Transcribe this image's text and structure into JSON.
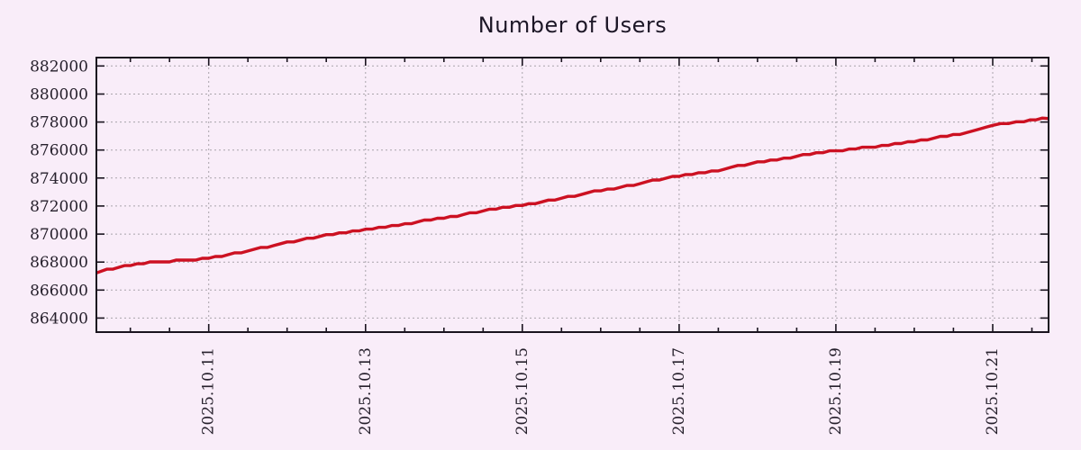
{
  "page": {
    "background": "#f9edf9"
  },
  "style": {
    "grid_color": "#a9a4ab",
    "axis_color": "#1a141f",
    "tick_label_color": "#26202c",
    "title_color": "#1c1626"
  },
  "chart_data": {
    "type": "line",
    "title": "Number of Users",
    "xlabel": "",
    "ylabel": "",
    "legend": "none",
    "grid": "dashed major gridlines, horizontal and vertical",
    "x_unit": "day of October 2025",
    "xlim": [
      9.567,
      21.713
    ],
    "ylim": [
      863000,
      882600
    ],
    "y_ticks": [
      864000,
      866000,
      868000,
      870000,
      872000,
      874000,
      876000,
      878000,
      880000,
      882000
    ],
    "x_major_ticks": [
      {
        "day": 11,
        "label": "2025.10.11"
      },
      {
        "day": 13,
        "label": "2025.10.13"
      },
      {
        "day": 15,
        "label": "2025.10.15"
      },
      {
        "day": 17,
        "label": "2025.10.17"
      },
      {
        "day": 19,
        "label": "2025.10.19"
      },
      {
        "day": 21,
        "label": "2025.10.21"
      }
    ],
    "x_minor_tick_step": 0.5,
    "series": [
      {
        "name": "Number of Users",
        "color": "#cc1122",
        "points": [
          [
            9.57,
            867250
          ],
          [
            9.7,
            867450
          ],
          [
            9.85,
            867600
          ],
          [
            10.0,
            867800
          ],
          [
            10.25,
            867950
          ],
          [
            10.5,
            868050
          ],
          [
            10.75,
            868150
          ],
          [
            11.0,
            868250
          ],
          [
            11.25,
            868550
          ],
          [
            11.5,
            868800
          ],
          [
            11.75,
            869100
          ],
          [
            12.0,
            869400
          ],
          [
            12.25,
            869650
          ],
          [
            12.5,
            869900
          ],
          [
            12.75,
            870150
          ],
          [
            13.0,
            870350
          ],
          [
            13.25,
            870500
          ],
          [
            13.5,
            870700
          ],
          [
            13.75,
            870950
          ],
          [
            14.0,
            871150
          ],
          [
            14.25,
            871400
          ],
          [
            14.5,
            871650
          ],
          [
            14.75,
            871900
          ],
          [
            15.0,
            872100
          ],
          [
            15.25,
            872300
          ],
          [
            15.5,
            872550
          ],
          [
            15.75,
            872850
          ],
          [
            16.0,
            873100
          ],
          [
            16.25,
            873350
          ],
          [
            16.5,
            873600
          ],
          [
            16.75,
            873900
          ],
          [
            17.0,
            874150
          ],
          [
            17.25,
            874350
          ],
          [
            17.5,
            874550
          ],
          [
            17.75,
            874850
          ],
          [
            18.0,
            875100
          ],
          [
            18.25,
            875350
          ],
          [
            18.5,
            875550
          ],
          [
            18.75,
            875800
          ],
          [
            19.0,
            875950
          ],
          [
            19.25,
            876100
          ],
          [
            19.5,
            876250
          ],
          [
            19.75,
            876450
          ],
          [
            20.0,
            876650
          ],
          [
            20.25,
            876850
          ],
          [
            20.5,
            877050
          ],
          [
            20.75,
            877400
          ],
          [
            21.0,
            877800
          ],
          [
            21.2,
            877900
          ],
          [
            21.4,
            878050
          ],
          [
            21.55,
            878200
          ],
          [
            21.71,
            878250
          ]
        ]
      }
    ]
  }
}
